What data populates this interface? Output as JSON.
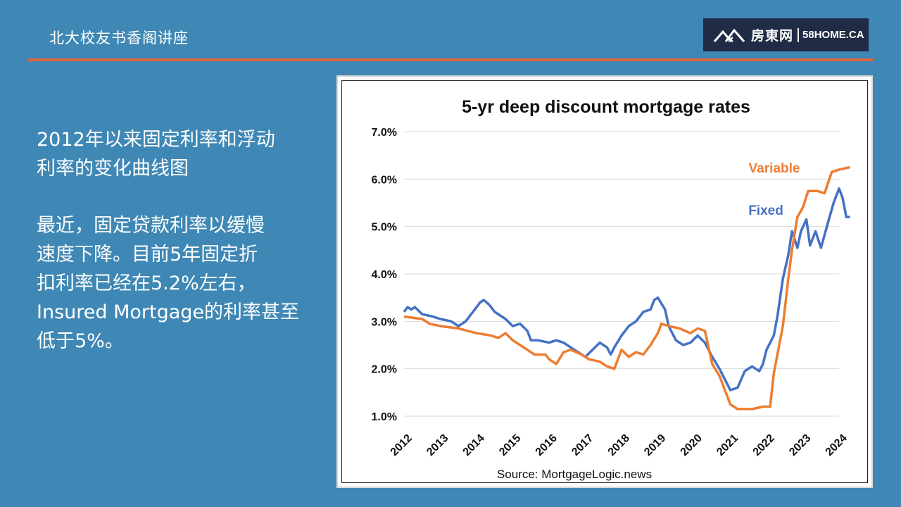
{
  "header": {
    "title": "北大校友书香阁讲座"
  },
  "logo": {
    "name_cn": "房東网",
    "name_en": "58HOME.CA",
    "icon": "house-roof-logo-icon"
  },
  "left_text": {
    "heading_lines": [
      "2012年以来固定利率和浮动",
      "利率的变化曲线图"
    ],
    "body_lines": [
      "最近，固定贷款利率以缓慢",
      "速度下降。目前5年固定折",
      "扣利率已经在5.2%左右，",
      "Insured Mortgage的利率甚至",
      "低于5%。"
    ]
  },
  "colors": {
    "background": "#3f88b5",
    "accent_rule": "#e0663a",
    "fixed": "#4472c4",
    "variable": "#ed7d31"
  },
  "chart_data": {
    "type": "line",
    "title": "5-yr deep discount mortgage rates",
    "source": "Source: MortgageLogic.news",
    "xlabel": "",
    "ylabel": "",
    "x_ticks": [
      "2012",
      "2013",
      "2014",
      "2015",
      "2016",
      "2017",
      "2018",
      "2019",
      "2020",
      "2021",
      "2022",
      "2023",
      "2024"
    ],
    "y_ticks": [
      "1.0%",
      "2.0%",
      "3.0%",
      "4.0%",
      "5.0%",
      "6.0%",
      "7.0%"
    ],
    "xlim": [
      2012,
      2024
    ],
    "ylim": [
      1.0,
      7.0
    ],
    "grid": "horizontal",
    "series": [
      {
        "name": "Fixed",
        "color": "#4472c4",
        "points": [
          [
            2012.0,
            3.2
          ],
          [
            2012.1,
            3.3
          ],
          [
            2012.2,
            3.25
          ],
          [
            2012.3,
            3.3
          ],
          [
            2012.5,
            3.15
          ],
          [
            2012.8,
            3.1
          ],
          [
            2013.0,
            3.05
          ],
          [
            2013.3,
            3.0
          ],
          [
            2013.5,
            2.9
          ],
          [
            2013.7,
            3.0
          ],
          [
            2013.9,
            3.2
          ],
          [
            2014.1,
            3.4
          ],
          [
            2014.2,
            3.45
          ],
          [
            2014.35,
            3.35
          ],
          [
            2014.5,
            3.2
          ],
          [
            2014.8,
            3.05
          ],
          [
            2015.0,
            2.9
          ],
          [
            2015.2,
            2.95
          ],
          [
            2015.4,
            2.8
          ],
          [
            2015.5,
            2.6
          ],
          [
            2015.7,
            2.6
          ],
          [
            2016.0,
            2.55
          ],
          [
            2016.2,
            2.6
          ],
          [
            2016.4,
            2.55
          ],
          [
            2016.6,
            2.45
          ],
          [
            2016.9,
            2.3
          ],
          [
            2017.0,
            2.25
          ],
          [
            2017.2,
            2.4
          ],
          [
            2017.4,
            2.55
          ],
          [
            2017.6,
            2.45
          ],
          [
            2017.7,
            2.3
          ],
          [
            2017.8,
            2.45
          ],
          [
            2018.0,
            2.7
          ],
          [
            2018.2,
            2.9
          ],
          [
            2018.4,
            3.0
          ],
          [
            2018.6,
            3.2
          ],
          [
            2018.8,
            3.25
          ],
          [
            2018.9,
            3.45
          ],
          [
            2019.0,
            3.5
          ],
          [
            2019.2,
            3.25
          ],
          [
            2019.3,
            2.9
          ],
          [
            2019.5,
            2.6
          ],
          [
            2019.7,
            2.5
          ],
          [
            2019.9,
            2.55
          ],
          [
            2020.1,
            2.7
          ],
          [
            2020.3,
            2.55
          ],
          [
            2020.5,
            2.25
          ],
          [
            2020.7,
            2.0
          ],
          [
            2020.9,
            1.7
          ],
          [
            2021.0,
            1.55
          ],
          [
            2021.2,
            1.6
          ],
          [
            2021.4,
            1.95
          ],
          [
            2021.6,
            2.05
          ],
          [
            2021.8,
            1.95
          ],
          [
            2021.9,
            2.1
          ],
          [
            2022.0,
            2.4
          ],
          [
            2022.2,
            2.7
          ],
          [
            2022.3,
            3.1
          ],
          [
            2022.45,
            3.9
          ],
          [
            2022.6,
            4.4
          ],
          [
            2022.7,
            4.9
          ],
          [
            2022.85,
            4.55
          ],
          [
            2022.95,
            4.9
          ],
          [
            2023.1,
            5.15
          ],
          [
            2023.2,
            4.6
          ],
          [
            2023.35,
            4.9
          ],
          [
            2023.5,
            4.55
          ],
          [
            2023.7,
            5.1
          ],
          [
            2023.85,
            5.5
          ],
          [
            2024.0,
            5.8
          ],
          [
            2024.1,
            5.6
          ],
          [
            2024.2,
            5.2
          ],
          [
            2024.3,
            5.2
          ]
        ]
      },
      {
        "name": "Variable",
        "color": "#ed7d31",
        "points": [
          [
            2012.0,
            3.1
          ],
          [
            2012.5,
            3.05
          ],
          [
            2012.7,
            2.95
          ],
          [
            2013.0,
            2.9
          ],
          [
            2013.5,
            2.85
          ],
          [
            2014.0,
            2.75
          ],
          [
            2014.4,
            2.7
          ],
          [
            2014.6,
            2.65
          ],
          [
            2014.8,
            2.75
          ],
          [
            2015.0,
            2.6
          ],
          [
            2015.2,
            2.5
          ],
          [
            2015.4,
            2.4
          ],
          [
            2015.6,
            2.3
          ],
          [
            2015.9,
            2.3
          ],
          [
            2016.0,
            2.2
          ],
          [
            2016.2,
            2.1
          ],
          [
            2016.4,
            2.35
          ],
          [
            2016.6,
            2.4
          ],
          [
            2016.9,
            2.3
          ],
          [
            2017.1,
            2.2
          ],
          [
            2017.4,
            2.15
          ],
          [
            2017.6,
            2.05
          ],
          [
            2017.8,
            2.0
          ],
          [
            2018.0,
            2.4
          ],
          [
            2018.2,
            2.25
          ],
          [
            2018.4,
            2.35
          ],
          [
            2018.6,
            2.3
          ],
          [
            2018.8,
            2.5
          ],
          [
            2019.0,
            2.75
          ],
          [
            2019.1,
            2.95
          ],
          [
            2019.3,
            2.9
          ],
          [
            2019.6,
            2.85
          ],
          [
            2019.9,
            2.75
          ],
          [
            2020.1,
            2.85
          ],
          [
            2020.3,
            2.8
          ],
          [
            2020.5,
            2.1
          ],
          [
            2020.7,
            1.85
          ],
          [
            2020.9,
            1.45
          ],
          [
            2021.0,
            1.25
          ],
          [
            2021.2,
            1.15
          ],
          [
            2021.6,
            1.15
          ],
          [
            2021.9,
            1.2
          ],
          [
            2022.1,
            1.2
          ],
          [
            2022.2,
            1.9
          ],
          [
            2022.3,
            2.3
          ],
          [
            2022.45,
            2.9
          ],
          [
            2022.6,
            3.9
          ],
          [
            2022.7,
            4.5
          ],
          [
            2022.85,
            5.2
          ],
          [
            2023.0,
            5.4
          ],
          [
            2023.15,
            5.75
          ],
          [
            2023.4,
            5.75
          ],
          [
            2023.6,
            5.7
          ],
          [
            2023.8,
            6.15
          ],
          [
            2024.0,
            6.2
          ],
          [
            2024.3,
            6.25
          ]
        ]
      }
    ]
  }
}
